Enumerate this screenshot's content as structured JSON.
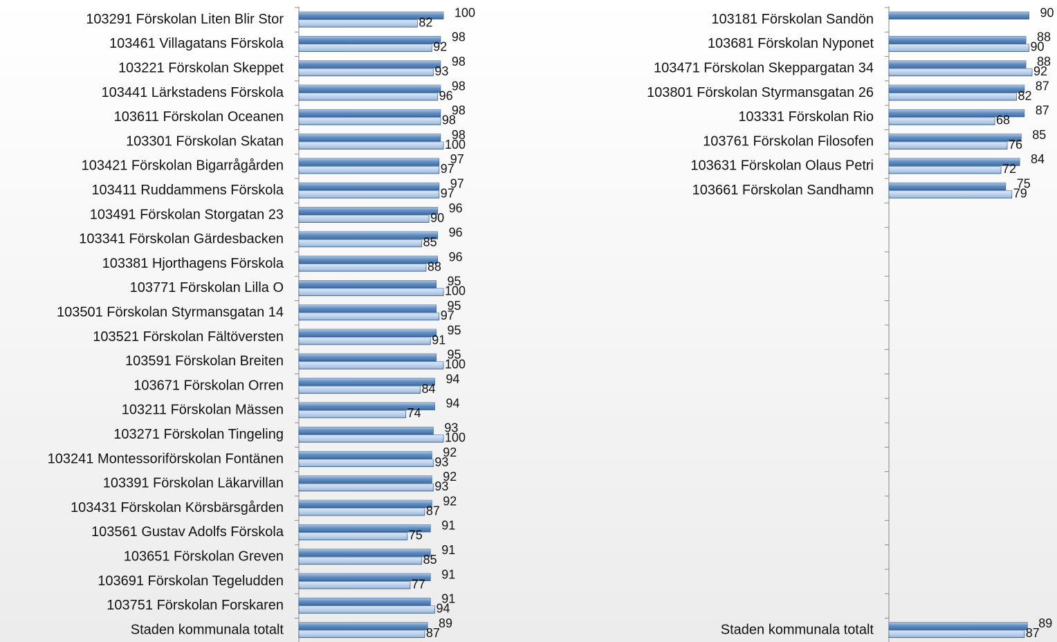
{
  "chart_data": [
    {
      "type": "hbar",
      "categories": [
        "103291  Förskolan Liten Blir Stor",
        "103461  Villagatans  Förskola",
        "103221  Förskolan Skeppet",
        "103441  Lärkstadens  Förskola",
        "103611  Förskolan Oceanen",
        "103301  Förskolan Skatan",
        "103421  Förskolan Bigarrågården",
        "103411  Ruddammens  Förskola",
        "103491  Förskolan Storgatan 23",
        "103341  Förskolan Gärdesbacken",
        "103381  Hjorthagens  Förskola",
        "103771  Förskolan Lilla O",
        "103501  Förskolan Styrmansgatan  14",
        "103521  Förskolan Fältöversten",
        "103591  Förskolan Breiten",
        "103671  Förskolan Orren",
        "103211  Förskolan Mässen",
        "103271  Förskolan Tingeling",
        "103241  Montessoriförskolan Fontänen",
        "103391  Förskolan Läkarvillan",
        "103431  Förskolan Körsbärsgården",
        "103561  Gustav  Adolfs Förskola",
        "103651  Förskolan Greven",
        "103691  Förskolan Tegeludden",
        "103751  Förskolan Forskaren",
        "Staden kommunala  totalt"
      ],
      "series": [
        {
          "color": "#4a7ebb",
          "values": [
            100,
            98,
            98,
            98,
            98,
            98,
            97,
            97,
            96,
            96,
            96,
            95,
            95,
            95,
            95,
            94,
            94,
            93,
            92,
            92,
            92,
            91,
            91,
            91,
            91,
            89
          ]
        },
        {
          "color": "#b3cdee",
          "values": [
            82,
            92,
            93,
            96,
            98,
            100,
            97,
            97,
            90,
            85,
            88,
            100,
            97,
            91,
            100,
            84,
            74,
            100,
            93,
            93,
            87,
            75,
            85,
            77,
            94,
            87
          ]
        }
      ],
      "xlim": [
        0,
        100
      ]
    },
    {
      "type": "hbar",
      "categories": [
        "103181  Förskolan Sandön",
        "103681  Förskolan Nyponet",
        "103471  Förskolan Skeppargatan 34",
        "103801  Förskolan Styrmansgatan 26",
        "103331  Förskolan Rio",
        "103761  Förskolan Filosofen",
        "103631  Förskolan Olaus  Petri",
        "103661  Förskolan Sandhamn",
        null,
        null,
        null,
        null,
        null,
        null,
        null,
        null,
        null,
        null,
        null,
        null,
        null,
        null,
        null,
        null,
        null,
        "Staden kommunala  totalt"
      ],
      "series": [
        {
          "color": "#4a7ebb",
          "values": [
            90,
            88,
            88,
            87,
            87,
            85,
            84,
            75,
            null,
            null,
            null,
            null,
            null,
            null,
            null,
            null,
            null,
            null,
            null,
            null,
            null,
            null,
            null,
            null,
            null,
            89
          ]
        },
        {
          "color": "#b3cdee",
          "values": [
            null,
            90,
            92,
            82,
            68,
            76,
            72,
            79,
            null,
            null,
            null,
            null,
            null,
            null,
            null,
            null,
            null,
            null,
            null,
            null,
            null,
            null,
            null,
            null,
            null,
            87
          ]
        }
      ],
      "xlim": [
        0,
        100
      ]
    }
  ]
}
